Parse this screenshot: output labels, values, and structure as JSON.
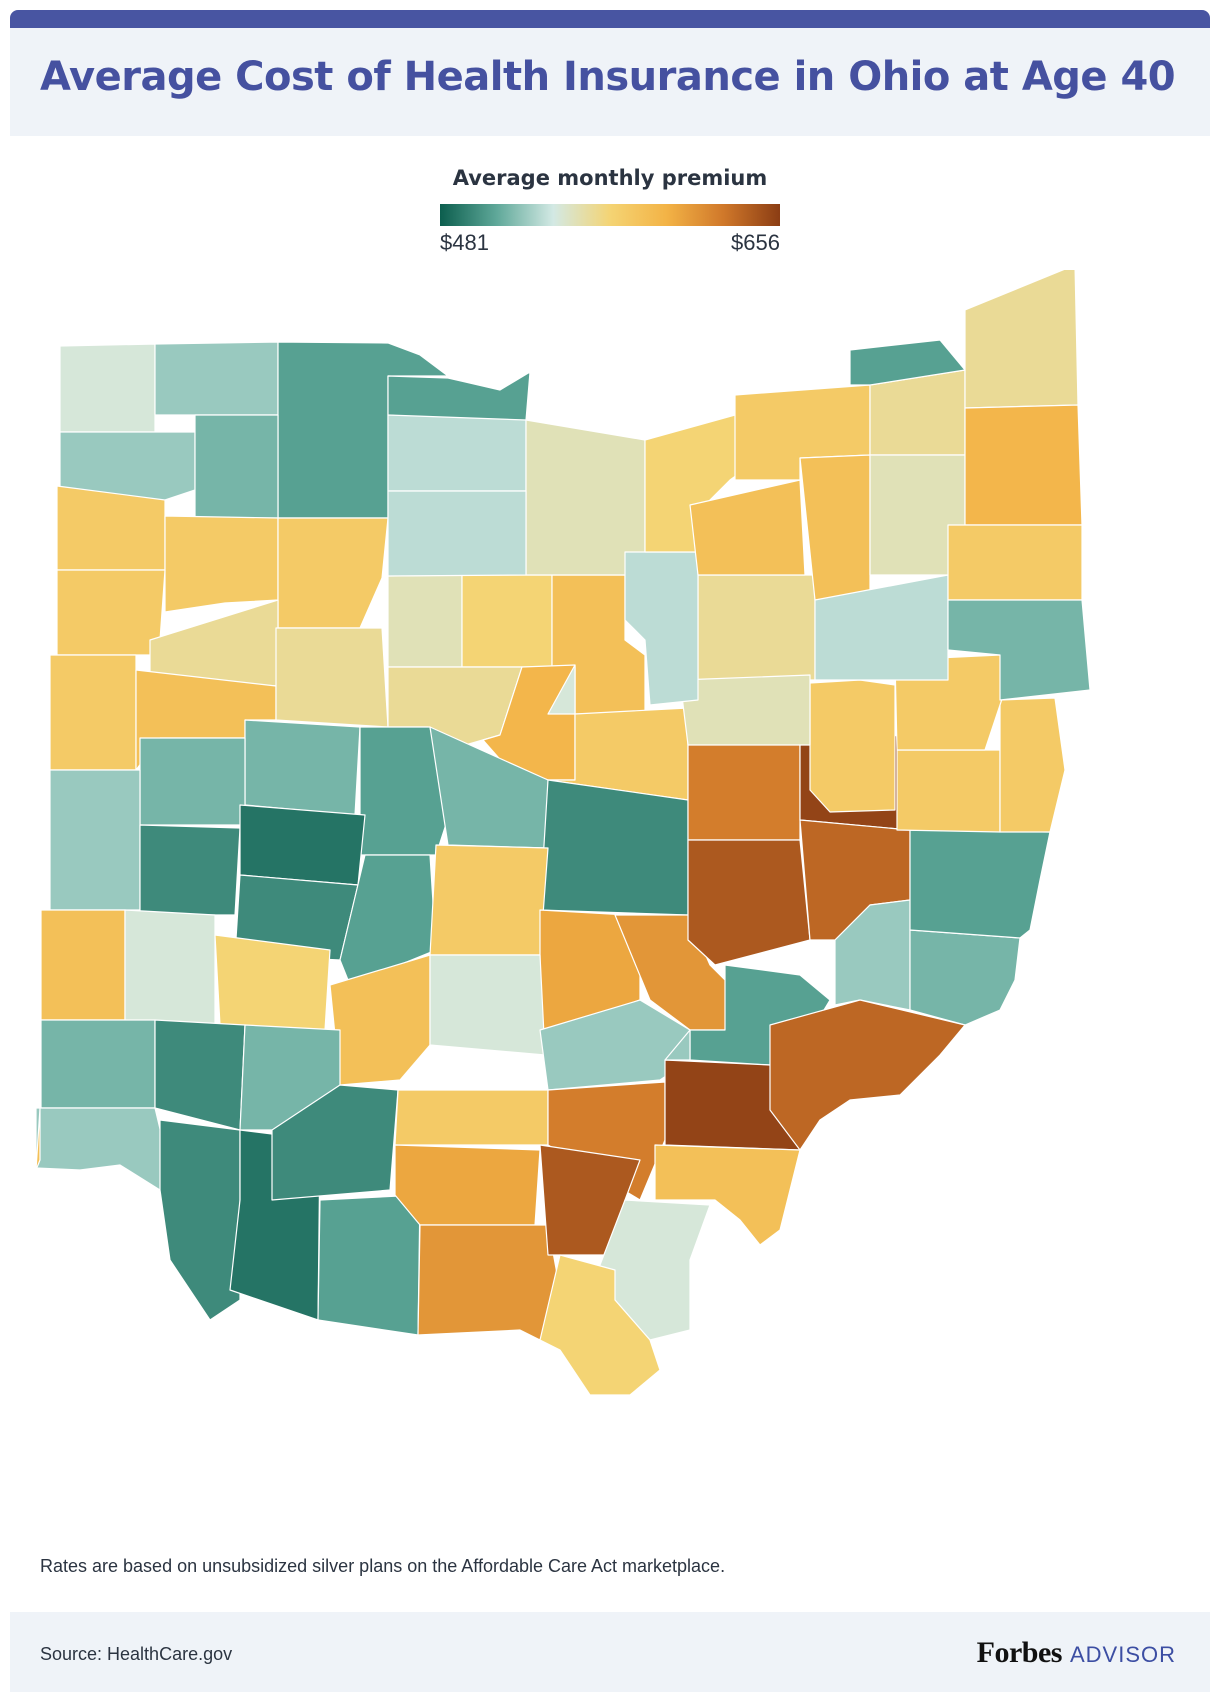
{
  "header": {
    "title": "Average Cost of Health Insurance in Ohio at Age 40"
  },
  "legend": {
    "title": "Average monthly premium",
    "min_label": "$481",
    "max_label": "$656",
    "min_value": 481,
    "max_value": 656,
    "gradient": [
      "#0c5e4e",
      "#5fa899",
      "#d3e9e4",
      "#f4d474",
      "#f3b346",
      "#d0782a",
      "#8b3d14"
    ]
  },
  "map": {
    "region": "Ohio",
    "counties_levels": [
      0.35,
      0.25,
      0.15,
      0.25,
      0.2,
      0.15,
      0.55,
      0.55,
      0.55,
      0.55,
      0.45,
      0.4,
      0.3,
      0.5,
      0.6,
      0.55,
      0.6,
      0.45,
      0.4,
      0.3,
      0.45,
      0.65,
      0.55,
      0.2,
      0.15,
      0.2,
      0.1,
      0.2,
      0.25,
      0.1,
      0.05,
      0.1,
      0.15,
      0.55,
      0.7,
      0.75,
      0.82,
      0.92,
      0.98,
      0.88,
      0.6,
      0.35,
      0.5,
      0.6
    ]
  },
  "notes": {
    "text": "Rates are based on unsubsidized silver plans on the Affordable Care Act marketplace."
  },
  "footer": {
    "source": "Source: HealthCare.gov",
    "brand_main": "Forbes",
    "brand_sub": "ADVISOR"
  }
}
